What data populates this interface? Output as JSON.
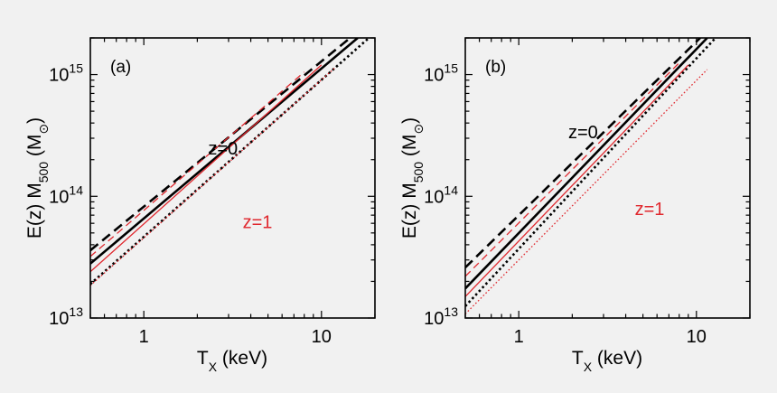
{
  "chart_data": [
    {
      "type": "line",
      "panel_label": "(a)",
      "xlabel": "T",
      "xlabel_sub": "X",
      "xlabel_unit": " (keV)",
      "ylabel_pre": "E(z) M",
      "ylabel_sub": "500",
      "ylabel_unit": " (M",
      "ylabel_sun": "⊙",
      "ylabel_close": ")",
      "xscale": "log",
      "yscale": "log",
      "xlim": [
        0.5,
        20
      ],
      "ylim": [
        10000000000000.0,
        2000000000000000.0
      ],
      "x_ticks": [
        {
          "value": 1,
          "label": "1"
        },
        {
          "value": 10,
          "label": "10"
        }
      ],
      "y_ticks": [
        {
          "value": 10000000000000.0,
          "base": "10",
          "exp": "13"
        },
        {
          "value": 100000000000000.0,
          "base": "10",
          "exp": "14"
        },
        {
          "value": 1000000000000000.0,
          "base": "10",
          "exp": "15"
        }
      ],
      "annotations": [
        {
          "text": "z=0",
          "color": "#000000",
          "x": 2.3,
          "y": 220000000000000.0
        },
        {
          "text": "z=1",
          "color": "#e0282e",
          "x": 3.6,
          "y": 55000000000000.0
        }
      ],
      "series": [
        {
          "name": "z=0 dashed",
          "color": "#000000",
          "style": "dashed",
          "width": "thick",
          "x": [
            0.5,
            14.5
          ],
          "y": [
            36000000000000.0,
            2000000000000000.0
          ]
        },
        {
          "name": "z=0 solid",
          "color": "#000000",
          "style": "solid",
          "width": "thick",
          "x": [
            0.5,
            16
          ],
          "y": [
            28000000000000.0,
            2000000000000000.0
          ]
        },
        {
          "name": "z=0 dotted",
          "color": "#000000",
          "style": "dotted",
          "width": "thick",
          "x": [
            0.5,
            18.5
          ],
          "y": [
            19000000000000.0,
            2000000000000000.0
          ]
        },
        {
          "name": "z=1 dashed",
          "color": "#e0282e",
          "style": "dashed",
          "width": "thin",
          "x": [
            0.5,
            8
          ],
          "y": [
            32000000000000.0,
            1050000000000000.0
          ]
        },
        {
          "name": "z=1 solid",
          "color": "#e0282e",
          "style": "solid",
          "width": "thin",
          "x": [
            0.5,
            10
          ],
          "y": [
            24000000000000.0,
            1200000000000000.0
          ]
        },
        {
          "name": "z=1 dotted",
          "color": "#e0282e",
          "style": "dotted",
          "width": "thin",
          "x": [
            0.5,
            12
          ],
          "y": [
            18500000000000.0,
            1150000000000000.0
          ]
        }
      ]
    },
    {
      "type": "line",
      "panel_label": "(b)",
      "xlabel": "T",
      "xlabel_sub": "X",
      "xlabel_unit": " (keV)",
      "ylabel_pre": "E(z) M",
      "ylabel_sub": "500",
      "ylabel_unit": " (M",
      "ylabel_sun": "⊙",
      "ylabel_close": ")",
      "xscale": "log",
      "yscale": "log",
      "xlim": [
        0.5,
        20
      ],
      "ylim": [
        10000000000000.0,
        2000000000000000.0
      ],
      "x_ticks": [
        {
          "value": 1,
          "label": "1"
        },
        {
          "value": 10,
          "label": "10"
        }
      ],
      "y_ticks": [
        {
          "value": 10000000000000.0,
          "base": "10",
          "exp": "13"
        },
        {
          "value": 100000000000000.0,
          "base": "10",
          "exp": "14"
        },
        {
          "value": 1000000000000000.0,
          "base": "10",
          "exp": "15"
        }
      ],
      "annotations": [
        {
          "text": "z=0",
          "color": "#000000",
          "x": 1.9,
          "y": 300000000000000.0
        },
        {
          "text": "z=1",
          "color": "#e0282e",
          "x": 4.5,
          "y": 70000000000000.0
        }
      ],
      "series": [
        {
          "name": "z=0 dashed",
          "color": "#000000",
          "style": "dashed",
          "width": "thick",
          "x": [
            0.5,
            10.5
          ],
          "y": [
            26000000000000.0,
            2000000000000000.0
          ]
        },
        {
          "name": "z=0 solid",
          "color": "#000000",
          "style": "solid",
          "width": "thick",
          "x": [
            0.5,
            11.5
          ],
          "y": [
            17500000000000.0,
            2000000000000000.0
          ]
        },
        {
          "name": "z=0 dotted",
          "color": "#000000",
          "style": "dotted",
          "width": "thick",
          "x": [
            0.5,
            12.8
          ],
          "y": [
            12500000000000.0,
            2000000000000000.0
          ]
        },
        {
          "name": "z=1 dashed",
          "color": "#e0282e",
          "style": "dashed",
          "width": "thin",
          "x": [
            0.5,
            8
          ],
          "y": [
            22000000000000.0,
            1250000000000000.0
          ]
        },
        {
          "name": "z=1 solid",
          "color": "#e0282e",
          "style": "solid",
          "width": "thin",
          "x": [
            0.5,
            9
          ],
          "y": [
            15000000000000.0,
            1200000000000000.0
          ]
        },
        {
          "name": "z=1 dotted",
          "color": "#e0282e",
          "style": "dotted",
          "width": "thin",
          "x": [
            0.5,
            11.5
          ],
          "y": [
            10800000000000.0,
            1100000000000000.0
          ]
        }
      ]
    }
  ]
}
